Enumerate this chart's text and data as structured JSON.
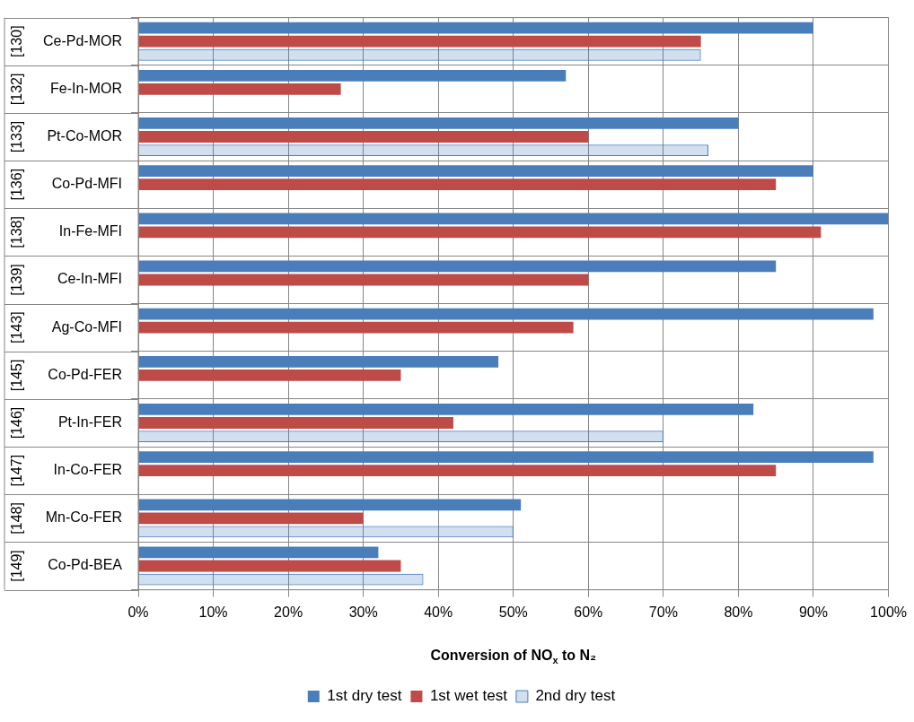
{
  "chart_data": {
    "type": "bar",
    "orientation": "horizontal",
    "categories": [
      "Ce-Pd-MOR",
      "Fe-In-MOR",
      "Pt-Co-MOR",
      "Co-Pd-MFI",
      "In-Fe-MFI",
      "Ce-In-MFI",
      "Ag-Co-MFI",
      "Co-Pd-FER",
      "Pt-In-FER",
      "In-Co-FER",
      "Mn-Co-FER",
      "Co-Pd-BEA"
    ],
    "annotations": [
      "[130]",
      "[132]",
      "[133]",
      "[136]",
      "[138]",
      "[139]",
      "[143]",
      "[145]",
      "[146]",
      "[147]",
      "[148]",
      "[149]"
    ],
    "series": [
      {
        "name": "1st dry test",
        "color": "#4a7ebb",
        "values": [
          90,
          57,
          80,
          90,
          100,
          85,
          98,
          48,
          82,
          98,
          51,
          32
        ]
      },
      {
        "name": "1st wet test",
        "color": "#be4b48",
        "values": [
          75,
          27,
          60,
          85,
          91,
          60,
          58,
          35,
          42,
          85,
          30,
          35
        ]
      },
      {
        "name": "2nd dry test",
        "color": "#4a7ebb",
        "values": [
          75,
          null,
          76,
          null,
          null,
          null,
          null,
          null,
          70,
          null,
          50,
          38
        ]
      }
    ],
    "xlabel": "Conversion of NO$_{x}$ to N₂",
    "xlim": [
      0,
      100
    ],
    "xticks": [
      {
        "value": 0,
        "label": "0%"
      },
      {
        "value": 10,
        "label": "10%"
      },
      {
        "value": 20,
        "label": "20%"
      },
      {
        "value": 30,
        "label": "30%"
      },
      {
        "value": 40,
        "label": "40%"
      },
      {
        "value": 50,
        "label": "50%"
      },
      {
        "value": 60,
        "label": "60%"
      },
      {
        "value": 70,
        "label": "70%"
      },
      {
        "value": 80,
        "label": "80%"
      },
      {
        "value": 90,
        "label": "90%"
      },
      {
        "value": 100,
        "label": "100%"
      }
    ],
    "grid": true,
    "legend": "bottom"
  }
}
